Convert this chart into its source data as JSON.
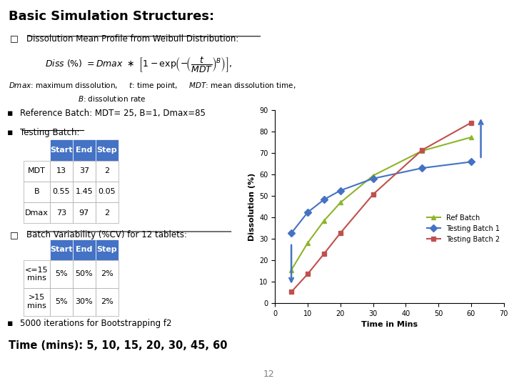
{
  "title": "Basic Simulation Structures:",
  "bullet1": "Dissolution Mean Profile from Weibull Distribution:",
  "ref_batch_text": "Reference Batch: MDT= 25, B=1, Dmax=85",
  "testing_batch_text": "Testing Batch:",
  "table1_headers": [
    "",
    "Start",
    "End",
    "Step"
  ],
  "table1_rows": [
    [
      "MDT",
      "13",
      "37",
      "2"
    ],
    [
      "B",
      "0.55",
      "1.45",
      "0.05"
    ],
    [
      "Dmax",
      "73",
      "97",
      "2"
    ]
  ],
  "batch_var_text": "Batch Variability (%CV) for 12 tablets:",
  "table2_headers": [
    "",
    "Start",
    "End",
    "Step"
  ],
  "table2_rows": [
    [
      "<=15\nmins",
      "5%",
      "50%",
      "2%"
    ],
    [
      ">15\nmins",
      "5%",
      "30%",
      "2%"
    ]
  ],
  "bootstrap_text": "5000 iterations for Bootstrapping f2",
  "time_text": "Time (mins): 5, 10, 15, 20, 30, 45, 60",
  "page_num": "12",
  "time_points": [
    5,
    10,
    15,
    20,
    30,
    45,
    60
  ],
  "ref_batch": {
    "MDT": 25,
    "B": 1,
    "Dmax": 85
  },
  "testing_batch1": {
    "MDT": 13,
    "B": 0.55,
    "Dmax": 73
  },
  "testing_batch2": {
    "MDT": 37,
    "B": 1.45,
    "Dmax": 97
  },
  "color_ref": "#8DB52A",
  "color_tb1": "#4472C4",
  "color_tb2": "#C0504D",
  "color_arrow": "#4472C4",
  "table_header_color": "#4472C4",
  "table_header_text_color": "#FFFFFF",
  "background_color": "#FFFFFF",
  "xlabel": "Time in Mins",
  "ylabel": "Dissolution (%)",
  "ylim": [
    0,
    90
  ],
  "xlim": [
    0,
    70
  ],
  "legend_labels": [
    "Ref Batch",
    "Testing Batch 1",
    "Testing Batch 2"
  ]
}
